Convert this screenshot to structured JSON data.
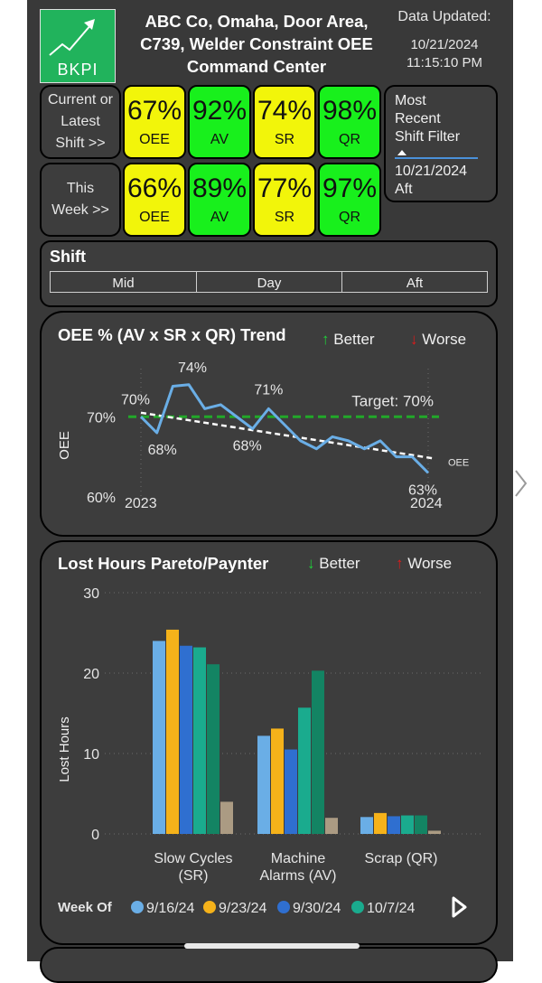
{
  "header": {
    "logo_text": "BKPI",
    "title_lines": [
      "ABC Co, Omaha, Door Area,",
      "C739, Welder Constraint OEE",
      "Command Center"
    ],
    "updated_label": "Data Updated:",
    "updated_date": "10/21/2024",
    "updated_time": "11:15:10 PM"
  },
  "kpi_rows": [
    {
      "label_lines": [
        "Current or",
        "Latest",
        "Shift >>"
      ],
      "cards": [
        {
          "value": "67%",
          "name": "OEE",
          "color": "#f2f50a"
        },
        {
          "value": "92%",
          "name": "AV",
          "color": "#18f01c"
        },
        {
          "value": "74%",
          "name": "SR",
          "color": "#f2f50a"
        },
        {
          "value": "98%",
          "name": "QR",
          "color": "#18f01c"
        }
      ]
    },
    {
      "label_lines": [
        "This",
        "Week >>"
      ],
      "cards": [
        {
          "value": "66%",
          "name": "OEE",
          "color": "#f2f50a"
        },
        {
          "value": "89%",
          "name": "AV",
          "color": "#18f01c"
        },
        {
          "value": "77%",
          "name": "SR",
          "color": "#f2f50a"
        },
        {
          "value": "97%",
          "name": "QR",
          "color": "#18f01c"
        }
      ]
    }
  ],
  "shift_filter": {
    "label_lines": [
      "Most",
      "Recent",
      "Shift Filter"
    ],
    "date": "10/21/2024",
    "shift": "Aft"
  },
  "shift_slicer": {
    "title": "Shift",
    "options": [
      "Mid",
      "Day",
      "Aft"
    ]
  },
  "oee_trend": {
    "title": "OEE % (AV x SR x QR) Trend",
    "better_label": "Better",
    "worse_label": "Worse",
    "target_label": "Target: 70%",
    "series_label": "OEE"
  },
  "pareto": {
    "title": "Lost Hours Pareto/Paynter",
    "better_label": "Better",
    "worse_label": "Worse",
    "legend_title": "Week Of"
  },
  "chart_data": [
    {
      "type": "line",
      "title": "OEE % (AV x SR x QR) Trend",
      "ylabel": "OEE",
      "x_tick_labels": [
        "2023",
        "2024"
      ],
      "y_tick_labels": [
        "60%",
        "70%"
      ],
      "ylim": [
        60,
        76
      ],
      "target": 70,
      "series": [
        {
          "name": "OEE",
          "color": "#6aaee6",
          "values": [
            70.0,
            68.0,
            73.8,
            74.0,
            71.0,
            71.5,
            70.0,
            68.5,
            71.0,
            69.0,
            67.0,
            66.0,
            67.5,
            67.0,
            66.0,
            67.0,
            65.0,
            65.0,
            63.0
          ],
          "data_labels": [
            {
              "index": 0,
              "text": "70%"
            },
            {
              "index": 1,
              "text": "68%"
            },
            {
              "index": 3,
              "text": "74%"
            },
            {
              "index": 7,
              "text": "68%"
            },
            {
              "index": 8,
              "text": "71%"
            },
            {
              "index": 18,
              "text": "63%"
            }
          ]
        }
      ],
      "trend_line": {
        "start": 70.5,
        "end": 64.8,
        "color": "#ffffff",
        "style": "dashed"
      },
      "target_line_color": "#22a829"
    },
    {
      "type": "bar",
      "title": "Lost Hours Pareto/Paynter",
      "ylabel": "Lost Hours",
      "ylim": [
        0,
        30
      ],
      "y_ticks": [
        0,
        10,
        20,
        30
      ],
      "categories": [
        [
          "Slow Cycles",
          "(SR)"
        ],
        [
          "Machine",
          "Alarms (AV)"
        ],
        [
          "Scrap (QR)"
        ]
      ],
      "series": [
        {
          "name": "9/16/24",
          "color": "#6aaee6",
          "values": [
            24.0,
            12.2,
            2.1
          ]
        },
        {
          "name": "9/23/24",
          "color": "#f5b21a",
          "values": [
            25.4,
            13.1,
            2.6
          ]
        },
        {
          "name": "9/30/24",
          "color": "#2f6fd0",
          "values": [
            23.4,
            10.5,
            2.2
          ]
        },
        {
          "name": "10/7/24",
          "color": "#1aab8e",
          "values": [
            23.2,
            15.7,
            2.3
          ]
        },
        {
          "name": "",
          "color": "#138463",
          "values": [
            21.1,
            20.3,
            2.3
          ]
        },
        {
          "name": "",
          "color": "#ab9b83",
          "values": [
            4.0,
            2.0,
            0.4
          ]
        }
      ]
    }
  ]
}
